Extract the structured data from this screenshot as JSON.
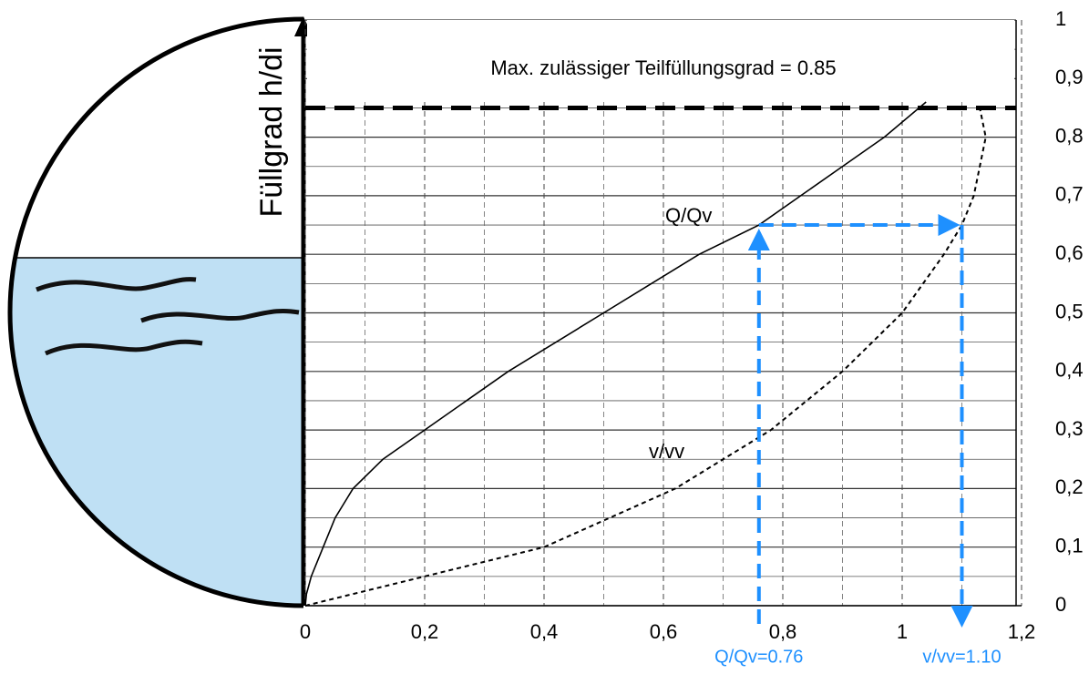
{
  "chart_data": {
    "type": "line",
    "y_label": "Füllgrad h/di",
    "annotation": "Max. zulässiger Teilfüllungsgrad = 0.85",
    "max_fill": 0.85,
    "reading": {
      "y": 0.65,
      "x_q": 0.76,
      "x_v": 1.1,
      "label_q": "Q/Qv=0.76",
      "label_v": "v/vv=1.10",
      "color": "#1e90ff"
    },
    "series": [
      {
        "name": "Q/Qv",
        "color": "#000000",
        "dashed": false,
        "x": [
          0,
          0.002,
          0.01,
          0.03,
          0.05,
          0.08,
          0.13,
          0.2,
          0.27,
          0.34,
          0.42,
          0.5,
          0.58,
          0.66,
          0.76,
          0.83,
          0.9,
          0.97,
          1.04
        ],
        "values": [
          0,
          0.02,
          0.05,
          0.1,
          0.15,
          0.2,
          0.25,
          0.3,
          0.35,
          0.4,
          0.45,
          0.5,
          0.55,
          0.6,
          0.65,
          0.7,
          0.75,
          0.8,
          0.86
        ]
      },
      {
        "name": "v/vv",
        "color": "#000000",
        "dashed": true,
        "x": [
          0,
          0.2,
          0.4,
          0.62,
          0.78,
          0.9,
          1.0,
          1.07,
          1.1,
          1.12,
          1.14,
          1.13
        ],
        "values": [
          0,
          0.05,
          0.1,
          0.2,
          0.3,
          0.4,
          0.5,
          0.6,
          0.65,
          0.7,
          0.8,
          0.85
        ]
      }
    ],
    "xlim": [
      0,
      1.2
    ],
    "xticks": [
      0,
      {
        "value": 0.2,
        "label": "0,2"
      },
      {
        "value": 0.4,
        "label": "0,4"
      },
      {
        "value": 0.6,
        "label": "0,6"
      },
      {
        "value": 0.8,
        "label": "0,8"
      },
      1,
      {
        "value": 1.2,
        "label": "1,2"
      }
    ],
    "ylim": [
      0,
      1
    ],
    "yticks": [
      0,
      {
        "value": 0.1,
        "label": "0,1"
      },
      {
        "value": 0.2,
        "label": "0,2"
      },
      {
        "value": 0.3,
        "label": "0,3"
      },
      {
        "value": 0.4,
        "label": "0,4"
      },
      {
        "value": 0.5,
        "label": "0,5"
      },
      {
        "value": 0.6,
        "label": "0,6"
      },
      {
        "value": 0.7,
        "label": "0,7"
      },
      {
        "value": 0.8,
        "label": "0,8"
      },
      {
        "value": 0.9,
        "label": "0,9"
      },
      1
    ],
    "grid": true
  }
}
